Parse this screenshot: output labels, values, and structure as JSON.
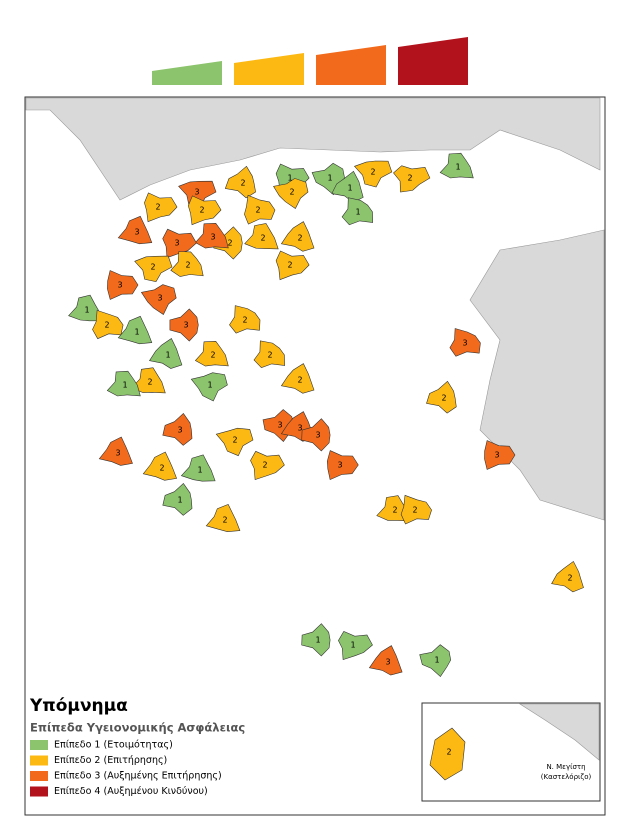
{
  "legend": {
    "title": "Υπόμνημα",
    "subtitle": "Επίπεδα Υγειονομικής Ασφάλειας",
    "items": [
      {
        "label": "Επίπεδο 1 (Ετοιμότητας)",
        "color": "#8cc46d"
      },
      {
        "label": "Επίπεδο 2 (Επιτήρησης)",
        "color": "#fdb913"
      },
      {
        "label": "Επίπεδο 3 (Αυξημένης Επιτήρησης)",
        "color": "#f26a1b"
      },
      {
        "label": "Επίπεδο 4 (Αυξημένου Κινδύνου)",
        "color": "#b2121b"
      }
    ]
  },
  "map": {
    "region_levels": [
      "1",
      "1",
      "1",
      "2",
      "2",
      "1",
      "1",
      "2",
      "3",
      "2",
      "2",
      "2",
      "2",
      "2",
      "2",
      "2",
      "3",
      "3",
      "3",
      "2",
      "2",
      "2",
      "3",
      "3",
      "1",
      "2",
      "3",
      "1",
      "1",
      "2",
      "2",
      "2",
      "2",
      "1",
      "2",
      "1",
      "3",
      "2",
      "3",
      "3",
      "3",
      "2",
      "3",
      "3",
      "1",
      "2",
      "1",
      "2",
      "2",
      "3",
      "2",
      "2",
      "3",
      "2",
      "1",
      "1",
      "3",
      "1"
    ],
    "inset_region_level": "2",
    "inset_label_line1": "Ν. Μεγίστη",
    "inset_label_line2": "(Καστελόριζο)"
  }
}
